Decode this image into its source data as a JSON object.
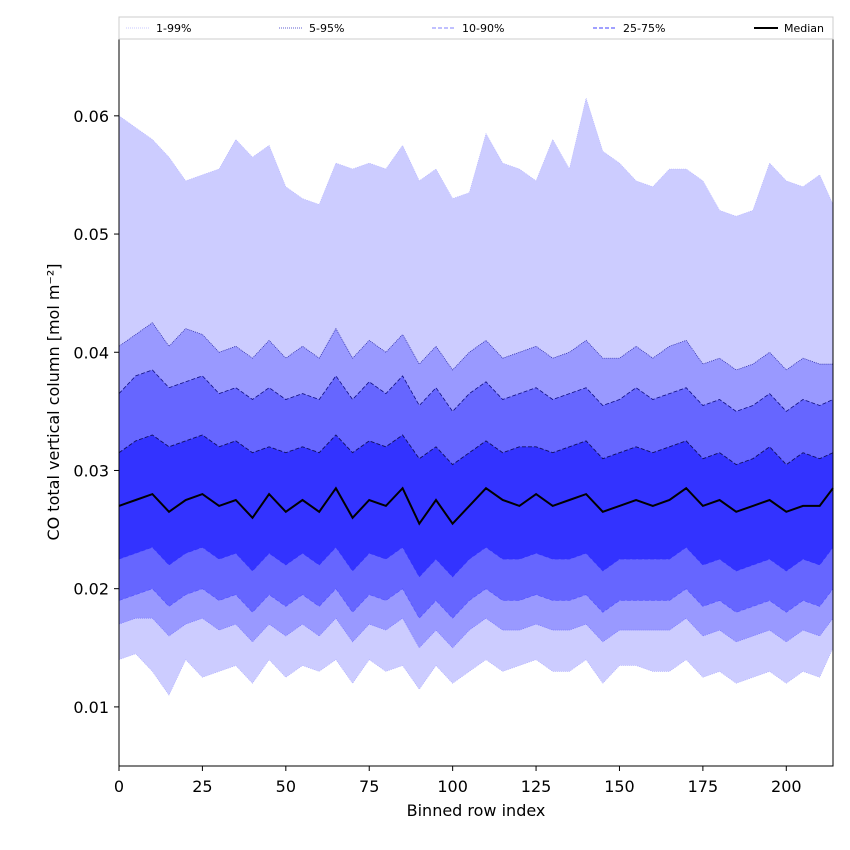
{
  "chart_data": {
    "type": "area",
    "title": "",
    "xlabel": "Binned row index",
    "ylabel": "CO total vertical column [mol m⁻²]",
    "xlim": [
      0,
      214
    ],
    "ylim": [
      0.005,
      0.0665
    ],
    "xticks": [
      0,
      25,
      50,
      75,
      100,
      125,
      150,
      175,
      200
    ],
    "yticks": [
      0.01,
      0.02,
      0.03,
      0.04,
      0.05,
      0.06
    ],
    "ytick_labels": [
      "0.01",
      "0.02",
      "0.03",
      "0.04",
      "0.05",
      "0.06"
    ],
    "grid": false,
    "legend_position": "top",
    "legend": [
      {
        "label": "1-99%",
        "style": "dotted",
        "color": "#c8c8ff"
      },
      {
        "label": "5-95%",
        "style": "dotted",
        "color": "#6060d0"
      },
      {
        "label": "10-90%",
        "style": "dashed",
        "color": "#8080ff"
      },
      {
        "label": "25-75%",
        "style": "dashed",
        "color": "#4040ff"
      },
      {
        "label": "Median",
        "style": "solid",
        "color": "#000000"
      }
    ],
    "band_colors": {
      "p1_99": "#ccccff",
      "p5_95": "#9999ff",
      "p10_90": "#6666ff",
      "p25_75": "#3333ff",
      "median": "#000000"
    },
    "x_sample_step": 5,
    "x": [
      0,
      5,
      10,
      15,
      20,
      25,
      30,
      35,
      40,
      45,
      50,
      55,
      60,
      65,
      70,
      75,
      80,
      85,
      90,
      95,
      100,
      105,
      110,
      115,
      120,
      125,
      130,
      135,
      140,
      145,
      150,
      155,
      160,
      165,
      170,
      175,
      180,
      185,
      190,
      195,
      200,
      205,
      210,
      214
    ],
    "series": [
      {
        "name": "1-99% upper",
        "values": [
          0.06,
          0.059,
          0.058,
          0.0565,
          0.0545,
          0.055,
          0.0555,
          0.058,
          0.0565,
          0.0575,
          0.054,
          0.053,
          0.0525,
          0.056,
          0.0555,
          0.056,
          0.0555,
          0.0575,
          0.0545,
          0.0555,
          0.053,
          0.0535,
          0.0585,
          0.056,
          0.0555,
          0.0545,
          0.058,
          0.0555,
          0.0615,
          0.057,
          0.056,
          0.0545,
          0.054,
          0.0555,
          0.0555,
          0.0545,
          0.052,
          0.0515,
          0.052,
          0.056,
          0.0545,
          0.054,
          0.055,
          0.0525
        ]
      },
      {
        "name": "5-95% upper",
        "values": [
          0.0405,
          0.0415,
          0.0425,
          0.0405,
          0.042,
          0.0415,
          0.04,
          0.0405,
          0.0395,
          0.041,
          0.0395,
          0.0405,
          0.0395,
          0.042,
          0.0395,
          0.041,
          0.04,
          0.0415,
          0.039,
          0.0405,
          0.0385,
          0.04,
          0.041,
          0.0395,
          0.04,
          0.0405,
          0.0395,
          0.04,
          0.041,
          0.0395,
          0.0395,
          0.0405,
          0.0395,
          0.0405,
          0.041,
          0.039,
          0.0395,
          0.0385,
          0.039,
          0.04,
          0.0385,
          0.0395,
          0.039,
          0.039
        ]
      },
      {
        "name": "10-90% upper",
        "values": [
          0.0365,
          0.038,
          0.0385,
          0.037,
          0.0375,
          0.038,
          0.0365,
          0.037,
          0.036,
          0.037,
          0.036,
          0.0365,
          0.036,
          0.038,
          0.036,
          0.0375,
          0.0365,
          0.038,
          0.0355,
          0.037,
          0.035,
          0.0365,
          0.0375,
          0.036,
          0.0365,
          0.037,
          0.036,
          0.0365,
          0.037,
          0.0355,
          0.036,
          0.037,
          0.036,
          0.0365,
          0.037,
          0.0355,
          0.036,
          0.035,
          0.0355,
          0.0365,
          0.035,
          0.036,
          0.0355,
          0.036
        ]
      },
      {
        "name": "25-75% upper",
        "values": [
          0.0315,
          0.0325,
          0.033,
          0.032,
          0.0325,
          0.033,
          0.032,
          0.0325,
          0.0315,
          0.032,
          0.0315,
          0.032,
          0.0315,
          0.033,
          0.0315,
          0.0325,
          0.032,
          0.033,
          0.031,
          0.032,
          0.0305,
          0.0315,
          0.0325,
          0.0315,
          0.032,
          0.032,
          0.0315,
          0.032,
          0.0325,
          0.031,
          0.0315,
          0.032,
          0.0315,
          0.032,
          0.0325,
          0.031,
          0.0315,
          0.0305,
          0.031,
          0.032,
          0.0305,
          0.0315,
          0.031,
          0.0315
        ]
      },
      {
        "name": "Median",
        "values": [
          0.027,
          0.0275,
          0.028,
          0.0265,
          0.0275,
          0.028,
          0.027,
          0.0275,
          0.026,
          0.028,
          0.0265,
          0.0275,
          0.0265,
          0.0285,
          0.026,
          0.0275,
          0.027,
          0.0285,
          0.0255,
          0.0275,
          0.0255,
          0.027,
          0.0285,
          0.0275,
          0.027,
          0.028,
          0.027,
          0.0275,
          0.028,
          0.0265,
          0.027,
          0.0275,
          0.027,
          0.0275,
          0.0285,
          0.027,
          0.0275,
          0.0265,
          0.027,
          0.0275,
          0.0265,
          0.027,
          0.027,
          0.0285
        ]
      },
      {
        "name": "25-75% lower",
        "values": [
          0.0225,
          0.023,
          0.0235,
          0.022,
          0.023,
          0.0235,
          0.0225,
          0.023,
          0.0215,
          0.023,
          0.022,
          0.023,
          0.022,
          0.0235,
          0.0215,
          0.023,
          0.0225,
          0.0235,
          0.021,
          0.0225,
          0.021,
          0.0225,
          0.0235,
          0.0225,
          0.0225,
          0.023,
          0.0225,
          0.0225,
          0.023,
          0.0215,
          0.0225,
          0.0225,
          0.0225,
          0.0225,
          0.0235,
          0.022,
          0.0225,
          0.0215,
          0.022,
          0.0225,
          0.0215,
          0.0225,
          0.022,
          0.0235
        ]
      },
      {
        "name": "10-90% lower",
        "values": [
          0.019,
          0.0195,
          0.02,
          0.0185,
          0.0195,
          0.02,
          0.019,
          0.0195,
          0.018,
          0.0195,
          0.0185,
          0.0195,
          0.0185,
          0.02,
          0.018,
          0.0195,
          0.019,
          0.02,
          0.0175,
          0.019,
          0.0175,
          0.019,
          0.02,
          0.019,
          0.019,
          0.0195,
          0.019,
          0.019,
          0.0195,
          0.018,
          0.019,
          0.019,
          0.019,
          0.019,
          0.02,
          0.0185,
          0.019,
          0.018,
          0.0185,
          0.019,
          0.018,
          0.019,
          0.0185,
          0.02
        ]
      },
      {
        "name": "5-95% lower",
        "values": [
          0.017,
          0.0175,
          0.0175,
          0.016,
          0.017,
          0.0175,
          0.0165,
          0.017,
          0.0155,
          0.017,
          0.016,
          0.017,
          0.016,
          0.0175,
          0.0155,
          0.017,
          0.0165,
          0.0175,
          0.015,
          0.0165,
          0.015,
          0.0165,
          0.0175,
          0.0165,
          0.0165,
          0.017,
          0.0165,
          0.0165,
          0.017,
          0.0155,
          0.0165,
          0.0165,
          0.0165,
          0.0165,
          0.0175,
          0.016,
          0.0165,
          0.0155,
          0.016,
          0.0165,
          0.0155,
          0.0165,
          0.016,
          0.0175
        ]
      },
      {
        "name": "1-99% lower",
        "values": [
          0.014,
          0.0145,
          0.013,
          0.011,
          0.014,
          0.0125,
          0.013,
          0.0135,
          0.012,
          0.014,
          0.0125,
          0.0135,
          0.013,
          0.014,
          0.012,
          0.014,
          0.013,
          0.0135,
          0.0115,
          0.0135,
          0.012,
          0.013,
          0.014,
          0.013,
          0.0135,
          0.014,
          0.013,
          0.013,
          0.014,
          0.012,
          0.0135,
          0.0135,
          0.013,
          0.013,
          0.014,
          0.0125,
          0.013,
          0.012,
          0.0125,
          0.013,
          0.012,
          0.013,
          0.0125,
          0.015
        ]
      }
    ]
  }
}
